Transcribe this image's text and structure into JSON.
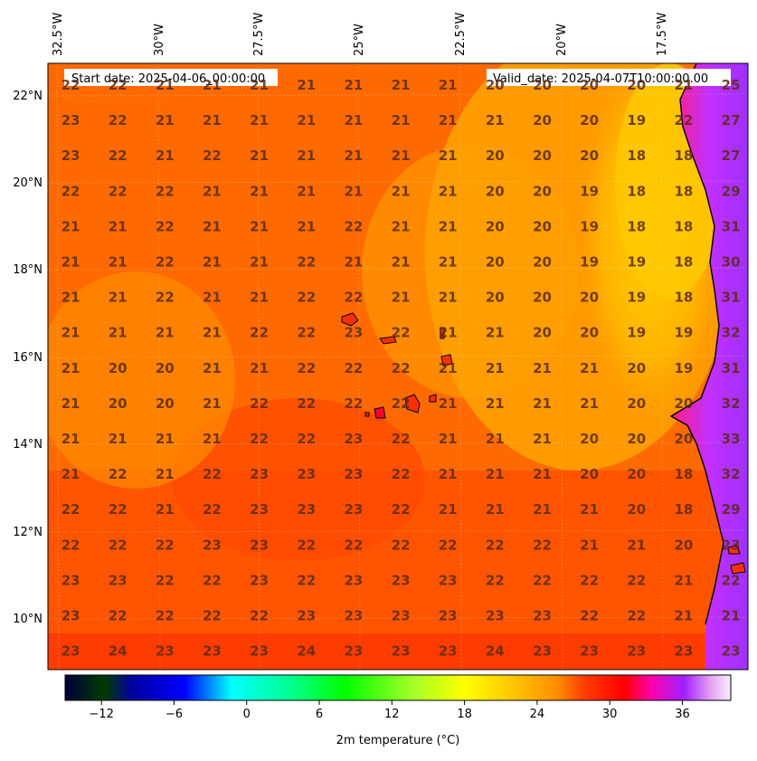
{
  "header": {
    "start_date": "Start date: 2025-04-06_00:00:00",
    "valid_date": "Valid_date: 2025-04-07T10:00:00.00"
  },
  "top_axis_labels": [
    "32.5°W",
    "30°W",
    "27.5°W",
    "25°W",
    "22.5°W",
    "20°W",
    "17.5°W"
  ],
  "left_axis_labels": [
    "22°N",
    "20°N",
    "18°N",
    "16°N",
    "14°N",
    "12°N",
    "10°N"
  ],
  "colorbar": {
    "label": "2m temperature ($^\\circ$C)",
    "display_label": "2m temperature (°C)",
    "tick_labels": [
      "−12",
      "−6",
      "0",
      "6",
      "12",
      "18",
      "24",
      "30",
      "36"
    ],
    "tick_values": [
      -12,
      -6,
      0,
      6,
      12,
      18,
      24,
      30,
      36
    ],
    "range": [
      -15,
      40
    ]
  },
  "grid_values": [
    [
      "22",
      "22",
      "21",
      "21",
      "21",
      "21",
      "21",
      "21",
      "21",
      "20",
      "20",
      "20",
      "20",
      "21",
      "25"
    ],
    [
      "23",
      "22",
      "21",
      "21",
      "21",
      "21",
      "21",
      "21",
      "21",
      "21",
      "20",
      "20",
      "19",
      "22",
      "27"
    ],
    [
      "23",
      "22",
      "21",
      "22",
      "21",
      "21",
      "21",
      "21",
      "21",
      "20",
      "20",
      "20",
      "18",
      "18",
      "27"
    ],
    [
      "22",
      "22",
      "22",
      "21",
      "21",
      "21",
      "21",
      "21",
      "21",
      "20",
      "20",
      "19",
      "18",
      "18",
      "29"
    ],
    [
      "21",
      "21",
      "22",
      "21",
      "21",
      "21",
      "22",
      "21",
      "21",
      "20",
      "20",
      "19",
      "18",
      "18",
      "31"
    ],
    [
      "21",
      "21",
      "22",
      "21",
      "21",
      "22",
      "21",
      "21",
      "21",
      "20",
      "20",
      "19",
      "19",
      "18",
      "30"
    ],
    [
      "21",
      "21",
      "22",
      "21",
      "21",
      "22",
      "22",
      "21",
      "21",
      "20",
      "20",
      "20",
      "19",
      "18",
      "31"
    ],
    [
      "21",
      "21",
      "21",
      "21",
      "22",
      "22",
      "23",
      "22",
      "21",
      "21",
      "20",
      "20",
      "19",
      "19",
      "32"
    ],
    [
      "21",
      "20",
      "20",
      "21",
      "21",
      "22",
      "22",
      "22",
      "21",
      "21",
      "21",
      "21",
      "20",
      "19",
      "31"
    ],
    [
      "21",
      "20",
      "20",
      "21",
      "22",
      "22",
      "22",
      "22",
      "21",
      "21",
      "21",
      "21",
      "20",
      "20",
      "32"
    ],
    [
      "21",
      "21",
      "21",
      "21",
      "22",
      "22",
      "23",
      "22",
      "21",
      "21",
      "21",
      "20",
      "20",
      "20",
      "33"
    ],
    [
      "21",
      "22",
      "21",
      "22",
      "23",
      "23",
      "23",
      "22",
      "21",
      "21",
      "21",
      "20",
      "20",
      "18",
      "32"
    ],
    [
      "22",
      "22",
      "21",
      "22",
      "23",
      "23",
      "23",
      "22",
      "21",
      "21",
      "21",
      "21",
      "20",
      "18",
      "29"
    ],
    [
      "22",
      "22",
      "22",
      "23",
      "23",
      "22",
      "22",
      "22",
      "22",
      "22",
      "22",
      "21",
      "21",
      "20",
      "23"
    ],
    [
      "23",
      "23",
      "22",
      "22",
      "23",
      "22",
      "23",
      "23",
      "23",
      "22",
      "22",
      "22",
      "22",
      "21",
      "22"
    ],
    [
      "23",
      "22",
      "22",
      "22",
      "22",
      "23",
      "23",
      "23",
      "23",
      "23",
      "23",
      "22",
      "22",
      "21",
      "21"
    ],
    [
      "23",
      "24",
      "23",
      "23",
      "23",
      "24",
      "23",
      "23",
      "23",
      "24",
      "23",
      "23",
      "23",
      "23",
      "23"
    ]
  ],
  "colors": {
    "sea_orange": "#ff6a00",
    "warm_red": "#ff3c00",
    "yellow_coast": "#ffc800",
    "land_magenta": "#d12eff",
    "number_text": "#5a2a10",
    "coastline": "#000000"
  }
}
